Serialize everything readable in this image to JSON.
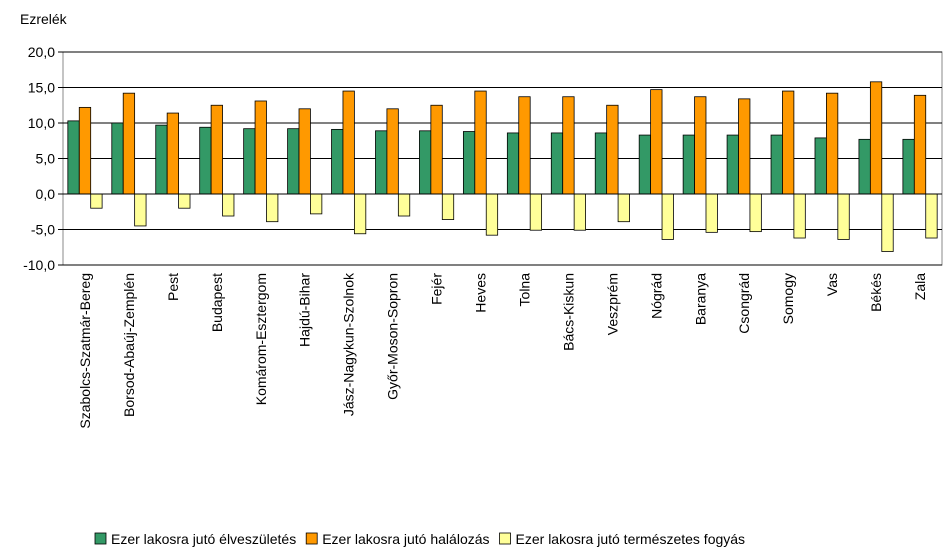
{
  "chart_data": {
    "type": "bar",
    "y_label": "Ezrelék",
    "categories": [
      "Szabolcs-Szatmár-Bereg",
      "Borsod-Abaúj-Zemplén",
      "Pest",
      "Budapest",
      "Komárom-Esztergom",
      "Hajdú-Bihar",
      "Jász-Nagykun-Szolnok",
      "Győr-Moson-Sopron",
      "Fejér",
      "Heves",
      "Tolna",
      "Bács-Kiskun",
      "Veszprém",
      "Nógrád",
      "Baranya",
      "Csongrád",
      "Somogy",
      "Vas",
      "Békés",
      "Zala"
    ],
    "series": [
      {
        "name": "Ezer lakosra jutó élveszületés",
        "color": "#339966",
        "values": [
          10.3,
          10.0,
          9.7,
          9.4,
          9.2,
          9.2,
          9.1,
          8.9,
          8.9,
          8.8,
          8.6,
          8.6,
          8.6,
          8.3,
          8.3,
          8.3,
          8.3,
          7.9,
          7.7,
          7.7
        ]
      },
      {
        "name": "Ezer lakosra jutó halálozás",
        "color": "#ff9900",
        "values": [
          12.2,
          14.2,
          11.4,
          12.5,
          13.1,
          12.0,
          14.5,
          12.0,
          12.5,
          14.5,
          13.7,
          13.7,
          12.5,
          14.7,
          13.7,
          13.4,
          14.5,
          14.2,
          15.8,
          13.9
        ]
      },
      {
        "name": "Ezer lakosra jutó természetes fogyás",
        "color": "#ffff99",
        "values": [
          -2.0,
          -4.5,
          -2.0,
          -3.1,
          -3.9,
          -2.8,
          -5.6,
          -3.1,
          -3.6,
          -5.8,
          -5.1,
          -5.1,
          -3.9,
          -6.4,
          -5.4,
          -5.3,
          -6.2,
          -6.4,
          -8.1,
          -6.2
        ]
      }
    ],
    "ylim": [
      -10,
      20
    ],
    "yticks": [
      {
        "value": -10,
        "label": "-10,0"
      },
      {
        "value": -5,
        "label": "-5,0"
      },
      {
        "value": 0,
        "label": "0,0"
      },
      {
        "value": 5,
        "label": "5,0"
      },
      {
        "value": 10,
        "label": "10,0"
      },
      {
        "value": 15,
        "label": "15,0"
      },
      {
        "value": 20,
        "label": "20,0"
      }
    ],
    "grid": true
  }
}
